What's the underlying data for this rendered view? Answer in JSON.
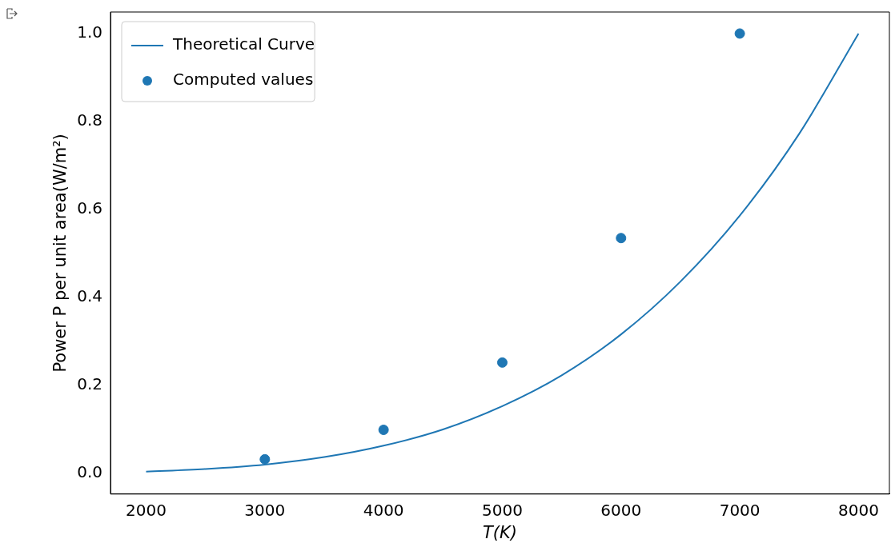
{
  "chart_data": {
    "type": "scatter",
    "xlabel": "T(K)",
    "ylabel": "Power P per unit area(W/m²)",
    "xlim": [
      1700,
      8260
    ],
    "ylim": [
      -0.047,
      1.049
    ],
    "xticks": [
      2000,
      3000,
      4000,
      5000,
      6000,
      7000,
      8000
    ],
    "yticks": [
      {
        "value": 0,
        "label": "0.0"
      },
      0.2,
      0.4,
      0.6,
      0.8,
      {
        "value": 1,
        "label": "1.0"
      }
    ],
    "grid": false,
    "legend": "top left",
    "series": [
      {
        "name": "Theoretical Curve",
        "type": "line",
        "color": "#1f77b4",
        "marker": "none",
        "line_style": "solid",
        "x": [
          2000,
          2500,
          3000,
          3500,
          4000,
          4500,
          5000,
          5500,
          6000,
          6500,
          7000,
          7500,
          8000
        ],
        "values": [
          0.004,
          0.01,
          0.02,
          0.037,
          0.063,
          0.1,
          0.153,
          0.223,
          0.316,
          0.436,
          0.586,
          0.772,
          1.0
        ]
      },
      {
        "name": "Computed values",
        "color": "#1f77b4",
        "marker": "circle",
        "x": [
          3000,
          4000,
          5000,
          6000,
          7000
        ],
        "values": [
          0.032,
          0.099,
          0.252,
          0.535,
          1.0
        ]
      }
    ]
  }
}
